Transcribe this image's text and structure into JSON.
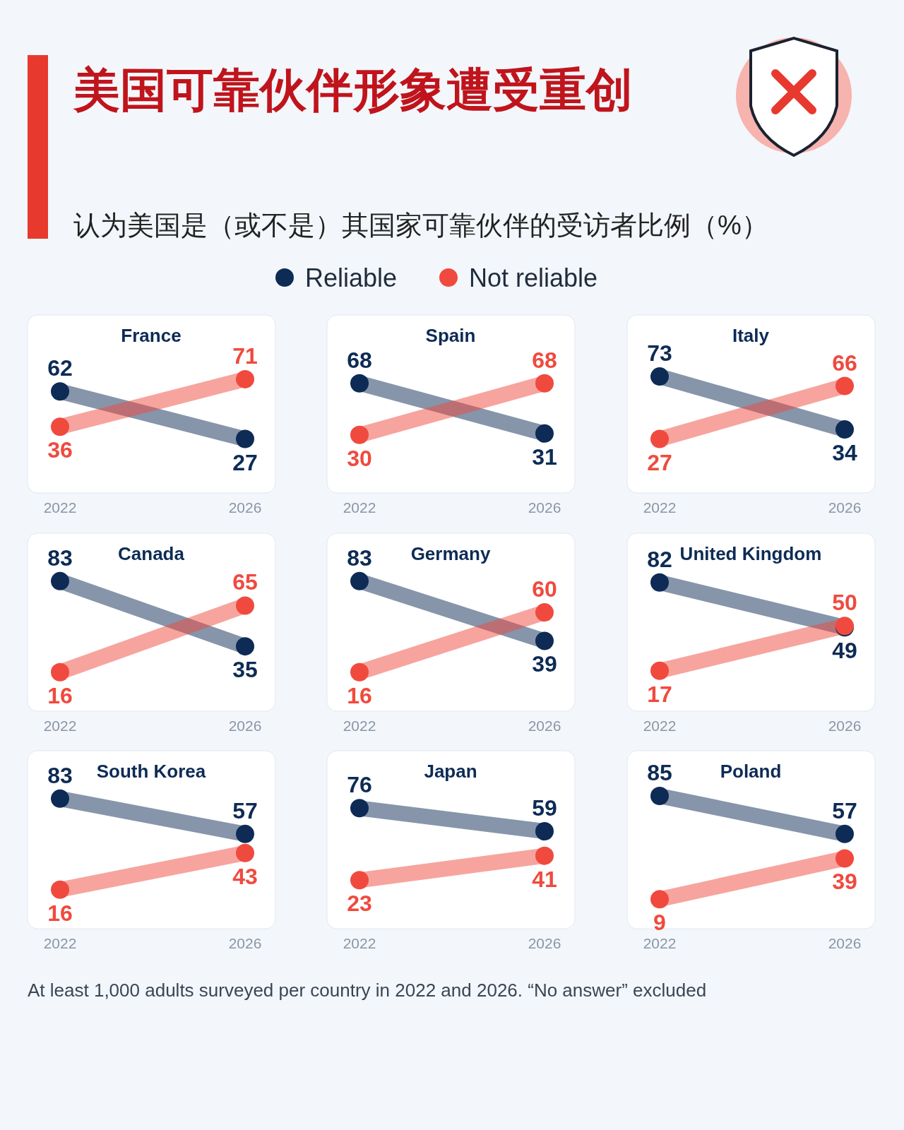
{
  "chart_data": [
    {
      "type": "other",
      "title": "美国可靠伙伴形象遭受重创",
      "subtitle": "认为美国是（或不是）其国家可靠伙伴的受访者比例（%）",
      "annotations": [
        "At least 1,000 adults surveyed per country in 2022 and 2026. “No answer” excluded"
      ]
    },
    {
      "type": "line",
      "title": "France",
      "categories": [
        "2022",
        "2026"
      ],
      "data_labels": true,
      "marker": "circle",
      "legend": "top",
      "series": [
        {
          "name": "Reliable",
          "color": "#0d2b55",
          "values": [
            62,
            27
          ]
        },
        {
          "name": "Not reliable",
          "color": "#f04a3e",
          "values": [
            36,
            71
          ]
        }
      ]
    },
    {
      "type": "line",
      "title": "Spain",
      "categories": [
        "2022",
        "2026"
      ],
      "data_labels": true,
      "marker": "circle",
      "series": [
        {
          "color": "#0d2b55",
          "values": [
            68,
            31
          ]
        },
        {
          "color": "#f04a3e",
          "values": [
            30,
            68
          ]
        }
      ]
    },
    {
      "type": "line",
      "title": "Italy",
      "categories": [
        "2022",
        "2026"
      ],
      "data_labels": true,
      "marker": "circle",
      "series": [
        {
          "color": "#0d2b55",
          "values": [
            73,
            34
          ]
        },
        {
          "color": "#f04a3e",
          "values": [
            27,
            66
          ]
        }
      ]
    },
    {
      "type": "line",
      "title": "Canada",
      "categories": [
        "2022",
        "2026"
      ],
      "data_labels": true,
      "marker": "circle",
      "series": [
        {
          "color": "#0d2b55",
          "values": [
            83,
            35
          ]
        },
        {
          "color": "#f04a3e",
          "values": [
            16,
            65
          ]
        }
      ]
    },
    {
      "type": "line",
      "title": "Germany",
      "categories": [
        "2022",
        "2026"
      ],
      "data_labels": true,
      "marker": "circle",
      "series": [
        {
          "color": "#0d2b55",
          "values": [
            83,
            39
          ]
        },
        {
          "color": "#f04a3e",
          "values": [
            16,
            60
          ]
        }
      ]
    },
    {
      "type": "line",
      "title": "United Kingdom",
      "categories": [
        "2022",
        "2026"
      ],
      "data_labels": true,
      "marker": "circle",
      "series": [
        {
          "color": "#0d2b55",
          "values": [
            82,
            49
          ]
        },
        {
          "color": "#f04a3e",
          "values": [
            17,
            50
          ]
        }
      ]
    },
    {
      "type": "line",
      "title": "South Korea",
      "categories": [
        "2022",
        "2026"
      ],
      "data_labels": true,
      "marker": "circle",
      "series": [
        {
          "color": "#0d2b55",
          "values": [
            83,
            57
          ]
        },
        {
          "color": "#f04a3e",
          "values": [
            16,
            43
          ]
        }
      ]
    },
    {
      "type": "line",
      "title": "Japan",
      "categories": [
        "2022",
        "2026"
      ],
      "data_labels": true,
      "marker": "circle",
      "series": [
        {
          "color": "#0d2b55",
          "values": [
            76,
            59
          ]
        },
        {
          "color": "#f04a3e",
          "values": [
            23,
            41
          ]
        }
      ]
    },
    {
      "type": "line",
      "title": "Poland",
      "categories": [
        "2022",
        "2026"
      ],
      "data_labels": true,
      "marker": "circle",
      "series": [
        {
          "color": "#0d2b55",
          "values": [
            85,
            57
          ]
        },
        {
          "color": "#f04a3e",
          "values": [
            9,
            39
          ]
        }
      ]
    }
  ]
}
